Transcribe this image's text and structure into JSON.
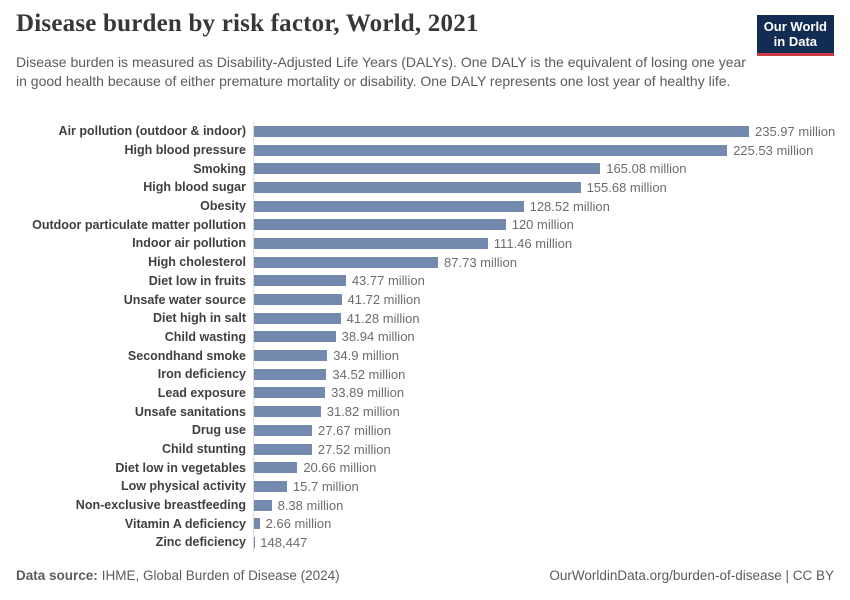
{
  "header": {
    "title": "Disease burden by risk factor, World, 2021",
    "subtitle": "Disease burden is measured as Disability-Adjusted Life Years (DALYs). One DALY is the equivalent of losing one year in good health because of either premature mortality or disability. One DALY represents one lost year of healthy life.",
    "logo_line1": "Our World",
    "logo_line2": "in Data"
  },
  "chart_data": {
    "type": "bar",
    "orientation": "horizontal",
    "title": "Disease burden by risk factor, World, 2021",
    "unit": "DALYs (Disability-Adjusted Life Years)",
    "xlim_millions": [
      0,
      236
    ],
    "grid": false,
    "legend": "none",
    "bar_color": "#7389ad",
    "categories": [
      "Air pollution (outdoor & indoor)",
      "High blood pressure",
      "Smoking",
      "High blood sugar",
      "Obesity",
      "Outdoor particulate matter pollution",
      "Indoor air pollution",
      "High cholesterol",
      "Diet low in fruits",
      "Unsafe water source",
      "Diet high in salt",
      "Child wasting",
      "Secondhand smoke",
      "Iron deficiency",
      "Lead exposure",
      "Unsafe sanitations",
      "Drug use",
      "Child stunting",
      "Diet low in vegetables",
      "Low physical activity",
      "Non-exclusive breastfeeding",
      "Vitamin A deficiency",
      "Zinc deficiency"
    ],
    "values_millions": [
      235.97,
      225.53,
      165.08,
      155.68,
      128.52,
      120,
      111.46,
      87.73,
      43.77,
      41.72,
      41.28,
      38.94,
      34.9,
      34.52,
      33.89,
      31.82,
      27.67,
      27.52,
      20.66,
      15.7,
      8.38,
      2.66,
      0.148447
    ],
    "value_labels": [
      "235.97 million",
      "225.53 million",
      "165.08 million",
      "155.68 million",
      "128.52 million",
      "120 million",
      "111.46 million",
      "87.73 million",
      "43.77 million",
      "41.72 million",
      "41.28 million",
      "38.94 million",
      "34.9 million",
      "34.52 million",
      "33.89 million",
      "31.82 million",
      "27.67 million",
      "27.52 million",
      "20.66 million",
      "15.7 million",
      "8.38 million",
      "2.66 million",
      "148,447"
    ]
  },
  "footer": {
    "datasource_label": "Data source:",
    "datasource_text": "IHME, Global Burden of Disease (2024)",
    "credit": "OurWorldinData.org/burden-of-disease | CC BY"
  },
  "colors": {
    "bar": "#7389ad",
    "logo_navy": "#132c54",
    "logo_red": "#cf3b49",
    "title_text": "#383636",
    "subtitle_text": "#5b5b5b",
    "category_label": "#3f3f3f",
    "value_label": "#6d6d6d",
    "axis_line": "#d9d9d9"
  }
}
